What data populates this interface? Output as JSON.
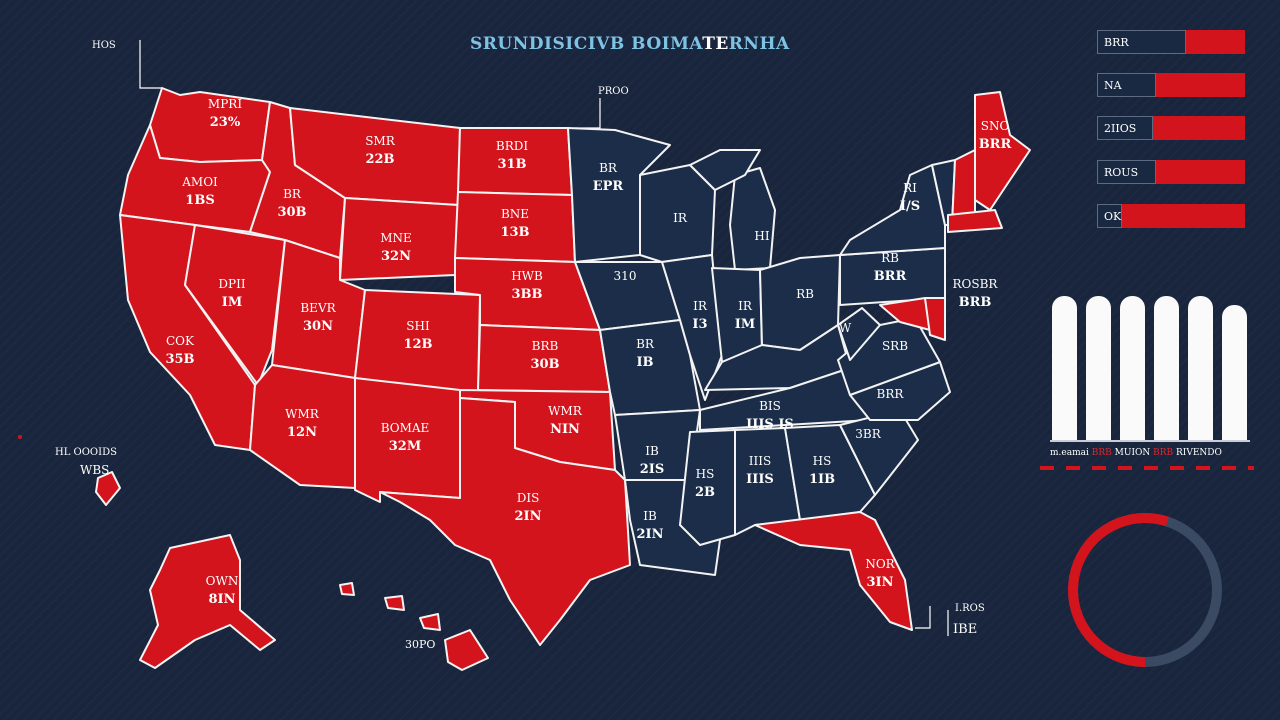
{
  "title": {
    "main": "SRUNDISICIVB BOIMA",
    "accent": "TE",
    "end": "RNHA"
  },
  "top_left_tag": "HOS",
  "top_center_tag": "PROO",
  "colors": {
    "background": "#18253c",
    "red": "#d3141c",
    "navy": "#1b2d48",
    "border": "#f3f3f3"
  },
  "legend": [
    {
      "label": "BRR",
      "value": 0.4
    },
    {
      "label": "NA",
      "value": 0.6
    },
    {
      "label": "2IIOS",
      "value": 0.62
    },
    {
      "label": "ROUS",
      "value": 0.6
    },
    {
      "label": "OK",
      "value": 0.83
    }
  ],
  "bars": [
    0.93,
    0.93,
    0.93,
    0.93,
    0.93,
    0.87
  ],
  "bar_caption": {
    "a": "m.eamai",
    "b": "BRB",
    "c": "MUION",
    "d": "BRB",
    "e": "RIVENDO"
  },
  "donut": {
    "red_fraction": 0.55
  },
  "left_tags": {
    "hi": "HL OOOIDS",
    "hi2": "WBS"
  },
  "hawaii_label": "30PO",
  "florida_tag_a": "I.ROS",
  "florida_tag_b": "IBE",
  "states": {
    "wa": [
      "MPRI",
      "23%"
    ],
    "or": [
      "AMOI",
      "1BS"
    ],
    "ca": [
      "COK",
      "35B"
    ],
    "id": [
      "BR",
      "30B"
    ],
    "nv": [
      "DPII",
      "IM"
    ],
    "mt": [
      "SMR",
      "22B"
    ],
    "wy": [
      "MNE",
      "32N"
    ],
    "ut": [
      "BEVR",
      "30N"
    ],
    "az": [
      "WMR",
      "12N"
    ],
    "co": [
      "SHI",
      "12B"
    ],
    "nm": [
      "BOMAE",
      "32M"
    ],
    "nd": [
      "BRDI",
      "31B"
    ],
    "sd": [
      "BNE",
      "13B"
    ],
    "ne": [
      "HWB",
      "3BB"
    ],
    "ks": [
      "BRB",
      "30B"
    ],
    "ok": [
      "WMR",
      "NIN"
    ],
    "tx": [
      "DIS",
      "2IN"
    ],
    "mn": [
      "BR",
      "EPR"
    ],
    "wi": [
      "IR"
    ],
    "ia": [
      "310"
    ],
    "mo": [
      "BR",
      "IB"
    ],
    "il": [
      "IR",
      "I3"
    ],
    "in": [
      "IR",
      "IM"
    ],
    "mi": [
      "HI"
    ],
    "oh": [
      "RB"
    ],
    "pa": [
      "RB",
      "BRR"
    ],
    "ny": [
      "RI",
      "I/S"
    ],
    "va": [
      "SRB"
    ],
    "nc": [
      "BRR"
    ],
    "tn": [
      "BIS",
      "IIIS IS"
    ],
    "ar": [
      "IB",
      "2IS"
    ],
    "ms": [
      "HS",
      "2B"
    ],
    "al": [
      "IIIS",
      "IIIS"
    ],
    "ga": [
      "HS",
      "1IB"
    ],
    "sc": [
      "3BR"
    ],
    "la": [
      "IB",
      "2IN"
    ],
    "fl": [
      "NOR",
      "3IN"
    ],
    "me": [
      "SNO",
      "BRR"
    ],
    "ak": [
      "OWN",
      "8IN"
    ],
    "wv": [
      "W"
    ],
    "de": [
      "ROSBR",
      "BRB"
    ]
  }
}
